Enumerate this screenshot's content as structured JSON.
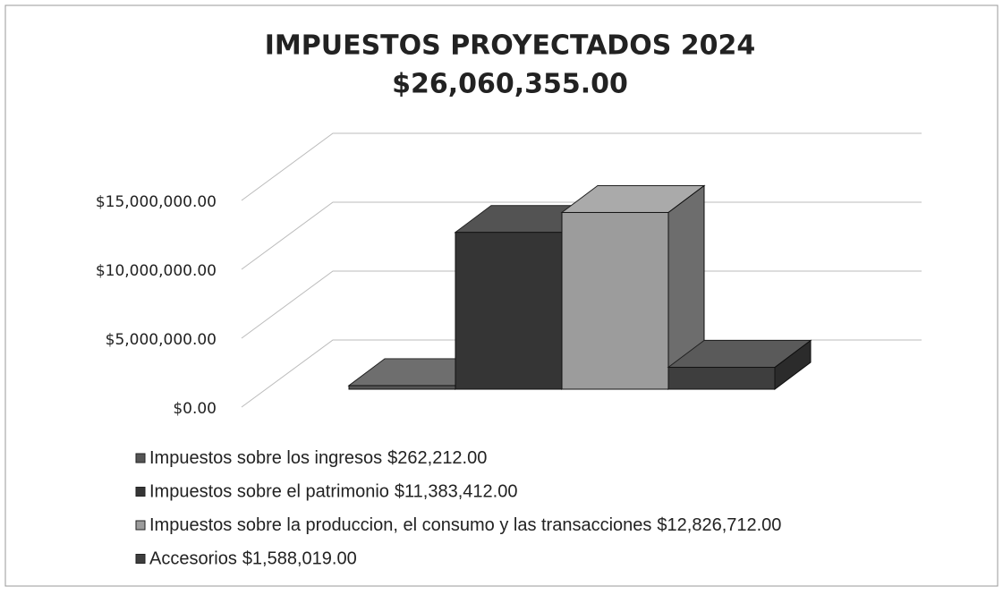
{
  "chart_data": {
    "type": "bar3d",
    "title": "IMPUESTOS PROYECTADOS 2024",
    "subtitle": "$26,060,355.00",
    "series": [
      {
        "name": "Impuestos sobre los ingresos",
        "color": "#555555",
        "values": [
          262212
        ],
        "value_labels": [
          "$262,212.00"
        ]
      },
      {
        "name": "Impuestos sobre el patrimonio",
        "color": "#353535",
        "values": [
          11383412
        ],
        "value_labels": [
          "$11,383,412.00"
        ]
      },
      {
        "name": "Impuestos sobre la produccion, el consumo y las transacciones",
        "color": "#9c9c9c",
        "values": [
          12826712
        ],
        "value_labels": [
          "$12,826,712.00"
        ]
      },
      {
        "name": "Accesorios",
        "color": "#3e3e3e",
        "values": [
          1588019
        ],
        "value_labels": [
          "$1,588,019.00"
        ]
      }
    ],
    "ylim": [
      0,
      15000000
    ],
    "yticks": [
      {
        "value": 0,
        "label": "$0.00"
      },
      {
        "value": 5000000,
        "label": "$5,000,000.00"
      },
      {
        "value": 10000000,
        "label": "$10,000,000.00"
      },
      {
        "value": 15000000,
        "label": "$15,000,000.00"
      }
    ],
    "grid": true,
    "legend": "bottom"
  }
}
